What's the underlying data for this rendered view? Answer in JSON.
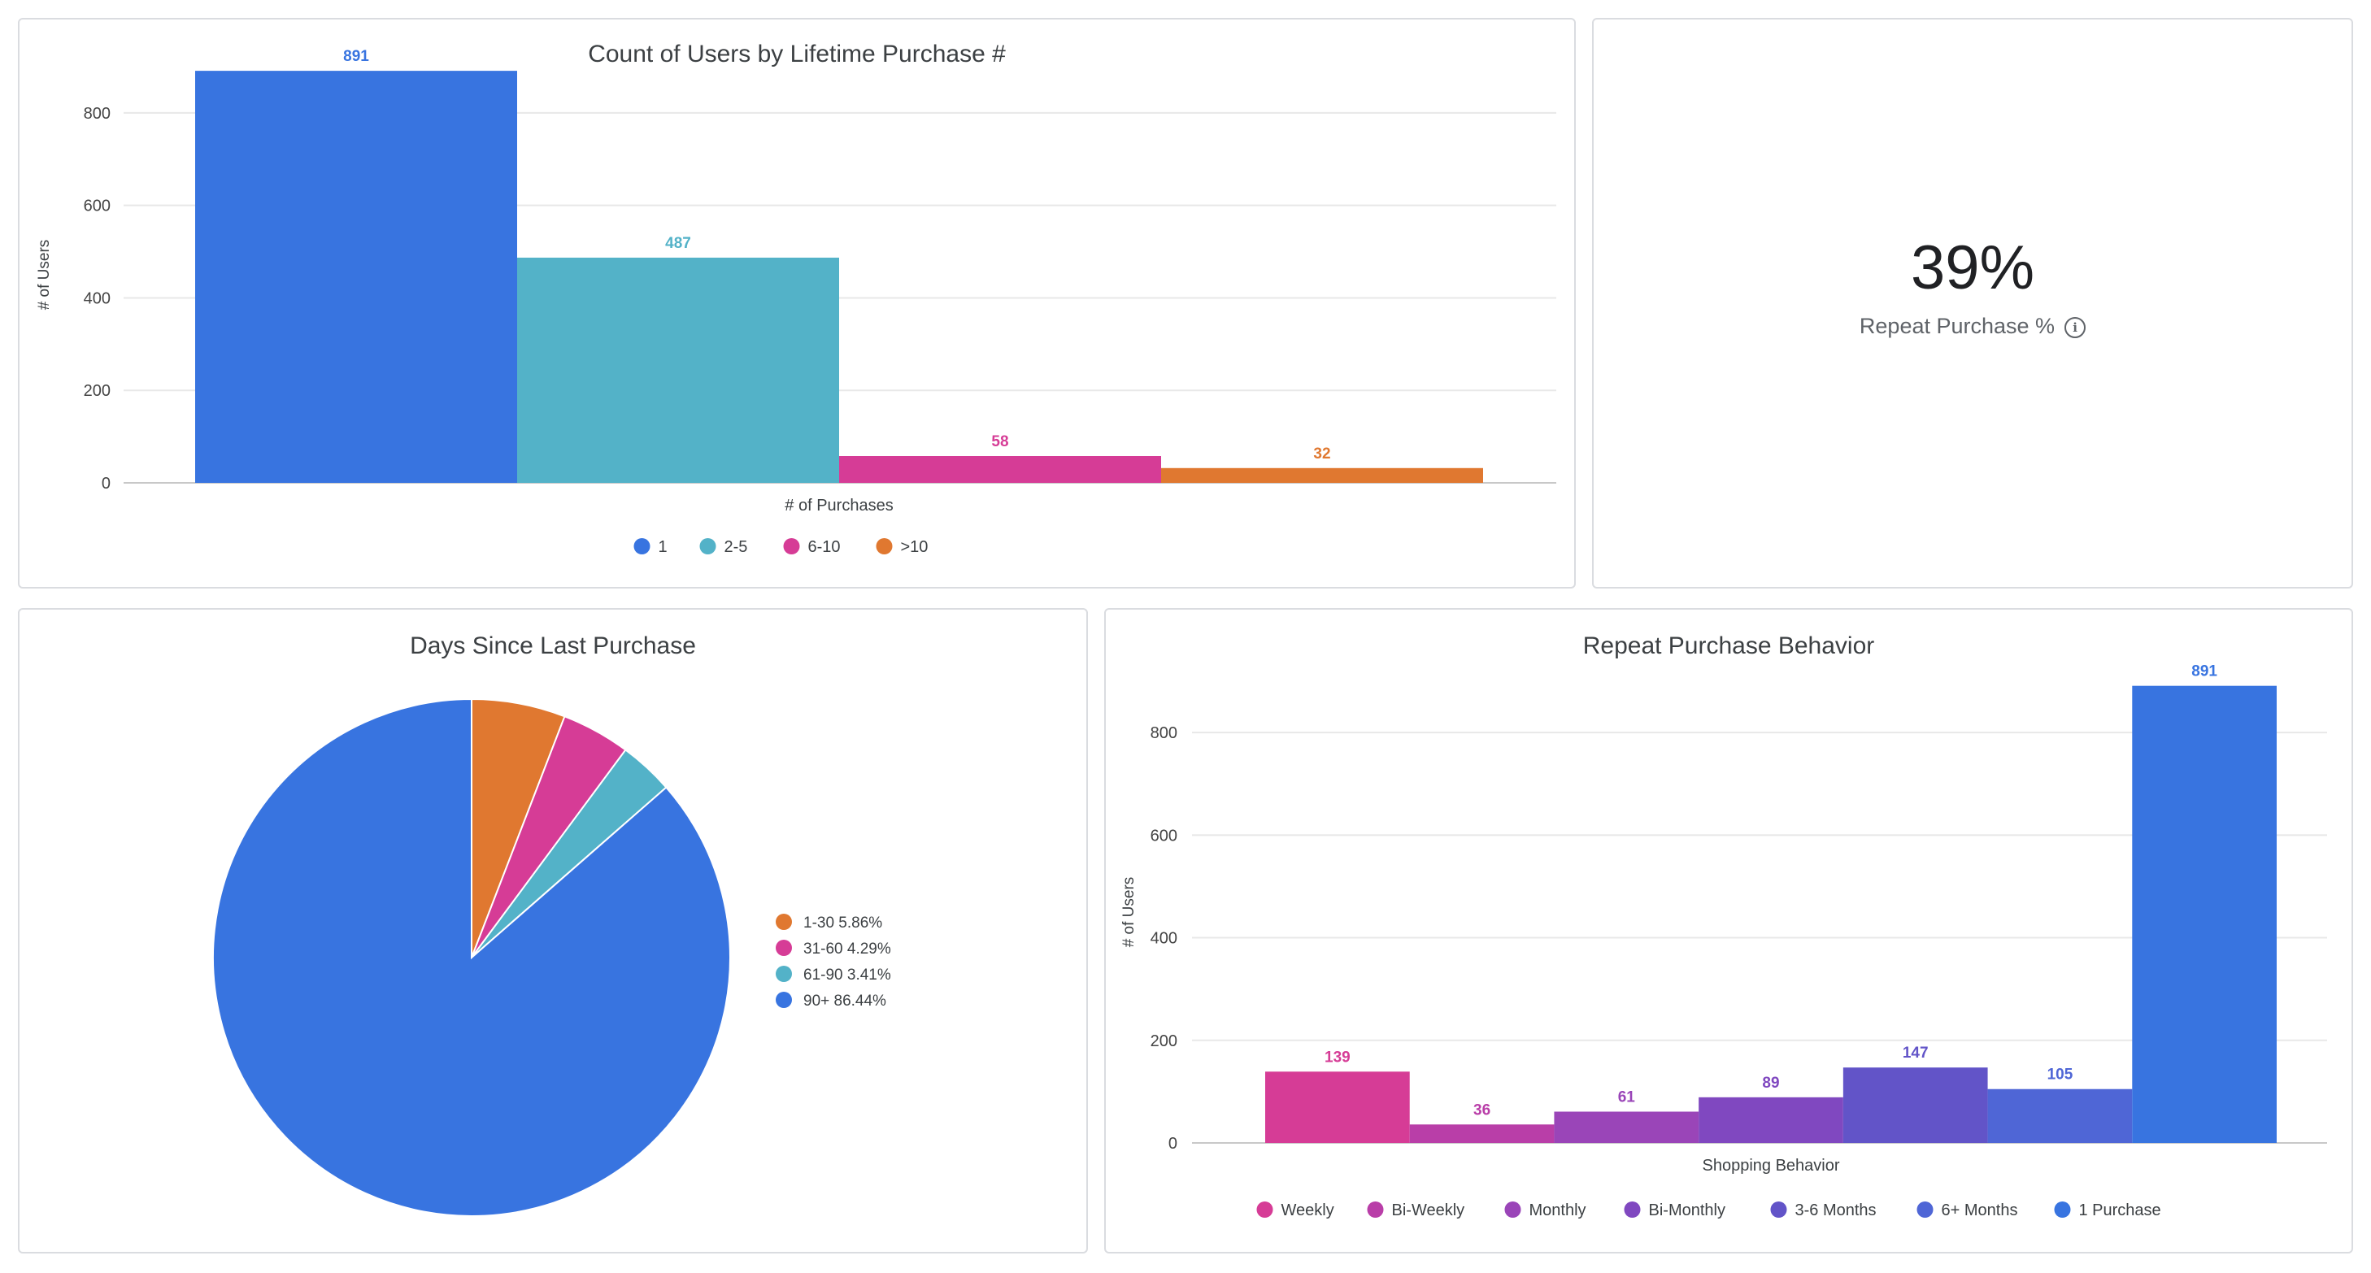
{
  "kpi": {
    "value": "39%",
    "label": "Repeat Purchase %",
    "info_icon": "info-circle-icon"
  },
  "chart_data": [
    {
      "id": "lifetime",
      "type": "bar",
      "title": "Count of Users by Lifetime Purchase #",
      "xlabel": "# of Purchases",
      "ylabel": "# of Users",
      "categories": [
        "1",
        "2-5",
        "6-10",
        ">10"
      ],
      "values": [
        891,
        487,
        58,
        32
      ],
      "colors": [
        "#3874e0",
        "#53b2c8",
        "#d63c96",
        "#e07830"
      ],
      "ylim": [
        0,
        900
      ],
      "yticks": [
        0,
        200,
        400,
        600,
        800
      ],
      "grid": true,
      "legend": "bottom"
    },
    {
      "id": "days",
      "type": "pie",
      "title": "Days Since Last Purchase",
      "slices": [
        {
          "label": "1-30",
          "pct_label": "5.86%",
          "value": 5.86,
          "color": "#e07830"
        },
        {
          "label": "31-60",
          "pct_label": "4.29%",
          "value": 4.29,
          "color": "#d63c96"
        },
        {
          "label": "61-90",
          "pct_label": "3.41%",
          "value": 3.41,
          "color": "#53b2c8"
        },
        {
          "label": "90+",
          "pct_label": "86.44%",
          "value": 86.44,
          "color": "#3874e0"
        }
      ],
      "legend": "right"
    },
    {
      "id": "repeat",
      "type": "bar",
      "title": "Repeat Purchase Behavior",
      "xlabel": "Shopping Behavior",
      "ylabel": "# of Users",
      "categories": [
        "Weekly",
        "Bi-Weekly",
        "Monthly",
        "Bi-Monthly",
        "3-6 Months",
        "6+ Months",
        "1 Purchase"
      ],
      "values": [
        139,
        36,
        61,
        89,
        147,
        105,
        891
      ],
      "colors": [
        "#d63c96",
        "#b93ea8",
        "#9a45b8",
        "#8048c0",
        "#6254c8",
        "#4f66d6",
        "#3874e0"
      ],
      "ylim": [
        0,
        900
      ],
      "yticks": [
        0,
        200,
        400,
        600,
        800
      ],
      "grid": true,
      "legend": "bottom"
    }
  ]
}
